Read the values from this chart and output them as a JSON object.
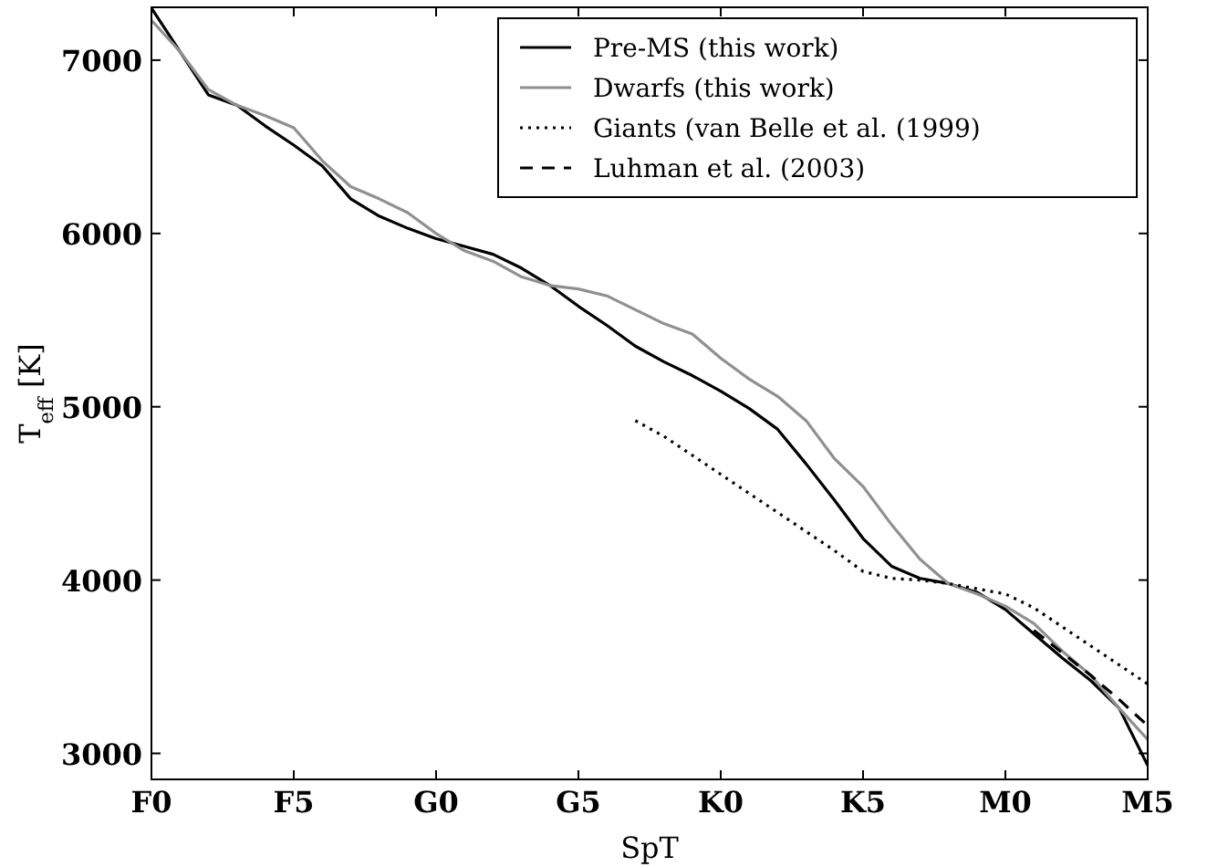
{
  "chart_data": {
    "type": "line",
    "xlabel": "SpT",
    "ylabel": "T$_{eff}$ [K]",
    "ylim": [
      2850,
      7305
    ],
    "categories": [
      "F0",
      null,
      null,
      null,
      null,
      "F5",
      null,
      null,
      null,
      null,
      "G0",
      null,
      null,
      null,
      null,
      "G5",
      null,
      null,
      null,
      null,
      "K0",
      null,
      null,
      null,
      null,
      "K5",
      null,
      null,
      null,
      null,
      "M0",
      null,
      null,
      null,
      null,
      "M5"
    ],
    "yticks": [
      3000,
      4000,
      5000,
      6000,
      7000
    ],
    "grid": false,
    "legend": "top right",
    "series": [
      {
        "name": "Pre-MS (this work)",
        "color": "#000000",
        "line_style": "solid",
        "values": [
          7300,
          7050,
          6800,
          6740,
          6620,
          6510,
          6390,
          6200,
          6100,
          6030,
          5970,
          5925,
          5880,
          5800,
          5700,
          5580,
          5470,
          5350,
          5260,
          5180,
          5090,
          4990,
          4870,
          4670,
          4460,
          4240,
          4080,
          4010,
          3980,
          3930,
          3830,
          3690,
          3550,
          3420,
          3260,
          2930
        ]
      },
      {
        "name": "Dwarfs (this work)",
        "color": "#909090",
        "line_style": "solid",
        "values": [
          7230,
          7050,
          6830,
          6740,
          6680,
          6610,
          6420,
          6270,
          6200,
          6120,
          6000,
          5900,
          5840,
          5750,
          5700,
          5680,
          5640,
          5560,
          5480,
          5420,
          5280,
          5160,
          5060,
          4920,
          4700,
          4540,
          4320,
          4120,
          3980,
          3920,
          3850,
          3750,
          3590,
          3450,
          3260,
          3080
        ]
      },
      {
        "name": "Giants (van Belle et al. (1999)",
        "color": "#000000",
        "line_style": "dotted",
        "values": [
          null,
          null,
          null,
          null,
          null,
          null,
          null,
          null,
          null,
          null,
          null,
          null,
          null,
          null,
          null,
          null,
          null,
          4920,
          4830,
          4720,
          4610,
          4500,
          4390,
          4280,
          4170,
          4050,
          4010,
          4000,
          3980,
          3950,
          3920,
          3840,
          3730,
          3620,
          3510,
          3400
        ]
      },
      {
        "name": "Luhman et al. (2003)",
        "color": "#000000",
        "line_style": "dashed",
        "values": [
          null,
          null,
          null,
          null,
          null,
          null,
          null,
          null,
          null,
          null,
          null,
          null,
          null,
          null,
          null,
          null,
          null,
          null,
          null,
          null,
          null,
          null,
          null,
          null,
          null,
          null,
          null,
          null,
          null,
          null,
          null,
          3710,
          3580,
          3450,
          3310,
          3160
        ]
      }
    ]
  }
}
